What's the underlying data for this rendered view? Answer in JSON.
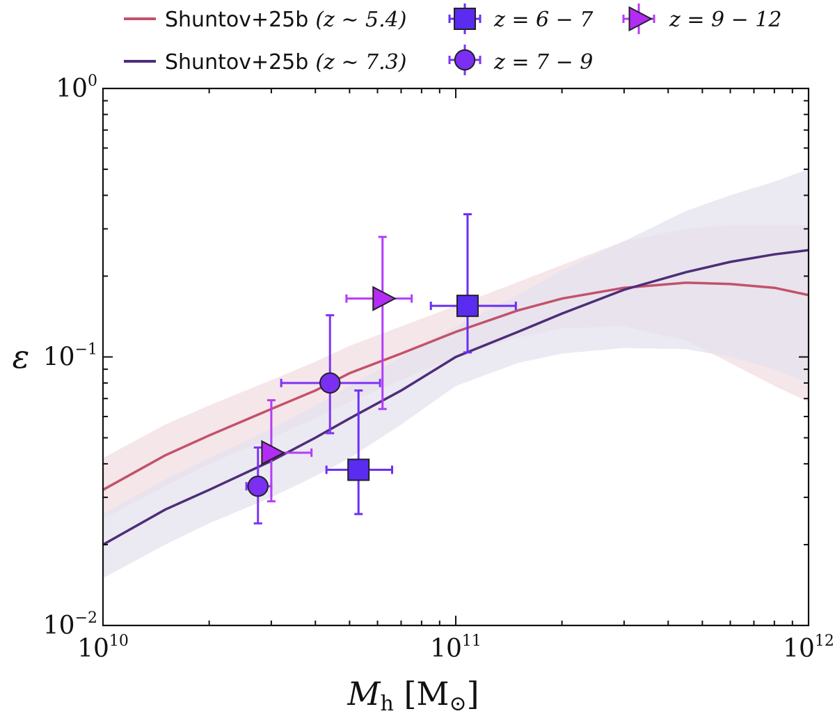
{
  "chart_data": {
    "type": "scatter",
    "title": "",
    "xlabel": "M_h [M_⊙]",
    "ylabel": "ε",
    "xscale": "log",
    "yscale": "log",
    "xlim": [
      10000000000.0,
      1000000000000.0
    ],
    "ylim": [
      0.01,
      1
    ],
    "x_ticks": [
      {
        "mant": "10",
        "exp": "10",
        "value": 10000000000.0
      },
      {
        "mant": "10",
        "exp": "11",
        "value": 100000000000.0
      },
      {
        "mant": "10",
        "exp": "12",
        "value": 1000000000000.0
      }
    ],
    "y_ticks": [
      {
        "mant": "10",
        "exp": "−2",
        "value": 0.01
      },
      {
        "mant": "10",
        "exp": "−1",
        "value": 0.1
      },
      {
        "mant": "10",
        "exp": "0",
        "value": 1
      }
    ],
    "legend_position": "top (above plot)",
    "lines": [
      {
        "name": "Shuntov+25b",
        "z_label": "(z ∼ 5.4)",
        "color": "#c2526b",
        "band_color": "#f2dde1",
        "x": [
          10000000000.0,
          15000000000.0,
          20000000000.0,
          30000000000.0,
          40000000000.0,
          50000000000.0,
          70000000000.0,
          100000000000.0,
          150000000000.0,
          200000000000.0,
          300000000000.0,
          450000000000.0,
          600000000000.0,
          800000000000.0,
          1000000000000.0
        ],
        "y": [
          0.032,
          0.043,
          0.051,
          0.064,
          0.075,
          0.087,
          0.103,
          0.124,
          0.149,
          0.165,
          0.181,
          0.189,
          0.187,
          0.181,
          0.17
        ],
        "y_lo": [
          0.025,
          0.033,
          0.04,
          0.05,
          0.059,
          0.068,
          0.082,
          0.1,
          0.118,
          0.128,
          0.13,
          0.115,
          0.095,
          0.078,
          0.068
        ],
        "y_hi": [
          0.042,
          0.056,
          0.066,
          0.082,
          0.096,
          0.11,
          0.13,
          0.155,
          0.19,
          0.22,
          0.27,
          0.3,
          0.31,
          0.31,
          0.31
        ]
      },
      {
        "name": "Shuntov+25b",
        "z_label": "(z ∼ 7.3)",
        "color": "#4d2d78",
        "band_color": "#e4e1ee",
        "x": [
          10000000000.0,
          15000000000.0,
          20000000000.0,
          30000000000.0,
          40000000000.0,
          50000000000.0,
          70000000000.0,
          100000000000.0,
          150000000000.0,
          200000000000.0,
          300000000000.0,
          450000000000.0,
          600000000000.0,
          800000000000.0,
          1000000000000.0
        ],
        "y": [
          0.02,
          0.027,
          0.032,
          0.041,
          0.05,
          0.059,
          0.075,
          0.1,
          0.124,
          0.145,
          0.178,
          0.207,
          0.226,
          0.241,
          0.25
        ],
        "y_lo": [
          0.015,
          0.02,
          0.024,
          0.03,
          0.036,
          0.042,
          0.056,
          0.078,
          0.095,
          0.103,
          0.108,
          0.107,
          0.1,
          0.09,
          0.08
        ],
        "y_hi": [
          0.026,
          0.035,
          0.042,
          0.054,
          0.066,
          0.078,
          0.1,
          0.13,
          0.17,
          0.21,
          0.27,
          0.35,
          0.4,
          0.45,
          0.5
        ]
      }
    ],
    "series": [
      {
        "name": "z = 6 − 7",
        "marker": "square",
        "color": "#5a2cf0",
        "ecolor": "#6a2ff5",
        "points": [
          {
            "x": 108000000000.0,
            "y": 0.155,
            "xlo": 85000000000.0,
            "xhi": 148000000000.0,
            "ylo": 0.104,
            "yhi": 0.34
          },
          {
            "x": 53000000000.0,
            "y": 0.038,
            "xlo": 43000000000.0,
            "xhi": 66000000000.0,
            "ylo": 0.026,
            "yhi": 0.075
          }
        ]
      },
      {
        "name": "z = 7 − 9",
        "marker": "circle",
        "color": "#7a2ff2",
        "ecolor": "#7e34f5",
        "points": [
          {
            "x": 44000000000.0,
            "y": 0.08,
            "xlo": 32000000000.0,
            "xhi": 61000000000.0,
            "ylo": 0.052,
            "yhi": 0.143
          },
          {
            "x": 27500000000.0,
            "y": 0.033,
            "xlo": 25500000000.0,
            "xhi": 30000000000.0,
            "ylo": 0.024,
            "yhi": 0.046
          }
        ]
      },
      {
        "name": "z = 9 − 12",
        "marker": "triangle-right",
        "color": "#b32cf5",
        "ecolor": "#b43cf7",
        "points": [
          {
            "x": 62000000000.0,
            "y": 0.165,
            "xlo": 49000000000.0,
            "xhi": 75000000000.0,
            "ylo": 0.064,
            "yhi": 0.28
          },
          {
            "x": 30000000000.0,
            "y": 0.044,
            "xlo": 28500000000.0,
            "xhi": 39000000000.0,
            "ylo": 0.029,
            "yhi": 0.069
          }
        ]
      }
    ]
  },
  "legend": {
    "line_label": "Shuntov+25b",
    "z1": "(z ∼ 5.4)",
    "z2": "(z ∼ 7.3)",
    "s1": "z = 6 − 7",
    "s2": "z = 7 − 9",
    "s3": "z = 9 − 12"
  },
  "axes": {
    "xlabel_main": "M",
    "xlabel_sub": "h",
    "xlabel_unit": "[M",
    "xlabel_unit_sub": "⊙",
    "xlabel_close": "]",
    "ylabel": "ε"
  }
}
